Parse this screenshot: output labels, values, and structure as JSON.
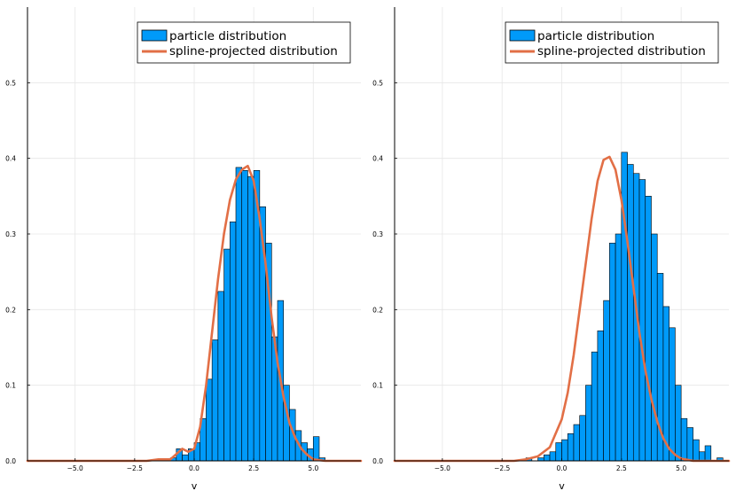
{
  "colors": {
    "histogram": "#009af9",
    "bar_edge": "#000000",
    "spline": "#e26f46",
    "grid": "#e6e6e6",
    "axis": "#000000"
  },
  "chart_data": [
    {
      "type": "bar",
      "subtype": "histogram-with-line",
      "xlabel": "v",
      "ylabel": "",
      "xlim": [
        -7,
        7
      ],
      "ylim": [
        0,
        0.6
      ],
      "xticks": [
        -5.0,
        -2.5,
        0.0,
        2.5,
        5.0
      ],
      "xtick_labels": [
        "−5.0",
        "−2.5",
        "0.0",
        "2.5",
        "5.0"
      ],
      "yticks": [
        0.0,
        0.1,
        0.2,
        0.3,
        0.4,
        0.5
      ],
      "ytick_labels": [
        "0.0",
        "0.1",
        "0.2",
        "0.3",
        "0.4",
        "0.5"
      ],
      "grid": true,
      "legend": {
        "position": "top-right",
        "entries": [
          "particle distribution",
          "spline-projected distribution"
        ]
      },
      "histogram": {
        "name": "particle distribution",
        "bin_width": 0.25,
        "bin_start": -1.0,
        "values": [
          0.004,
          0.016,
          0.008,
          0.016,
          0.024,
          0.056,
          0.108,
          0.16,
          0.224,
          0.28,
          0.316,
          0.388,
          0.384,
          0.376,
          0.384,
          0.336,
          0.288,
          0.164,
          0.212,
          0.1,
          0.068,
          0.04,
          0.024,
          0.016,
          0.032,
          0.004
        ]
      },
      "spline": {
        "name": "spline-projected distribution",
        "x": [
          -7,
          -2.0,
          -1.5,
          -1.0,
          -0.5,
          -0.25,
          0.0,
          0.25,
          0.5,
          0.75,
          1.0,
          1.25,
          1.5,
          1.75,
          2.0,
          2.25,
          2.5,
          2.75,
          3.0,
          3.25,
          3.5,
          3.75,
          4.0,
          4.25,
          4.5,
          4.75,
          5.0,
          5.5,
          7
        ],
        "y": [
          0,
          0.0,
          0.002,
          0.002,
          0.016,
          0.012,
          0.016,
          0.045,
          0.1,
          0.17,
          0.24,
          0.3,
          0.345,
          0.372,
          0.385,
          0.39,
          0.37,
          0.32,
          0.26,
          0.19,
          0.13,
          0.085,
          0.05,
          0.03,
          0.016,
          0.008,
          0.002,
          0.0,
          0
        ]
      }
    },
    {
      "type": "bar",
      "subtype": "histogram-with-line",
      "xlabel": "v",
      "ylabel": "",
      "xlim": [
        -7,
        7
      ],
      "ylim": [
        0,
        0.6
      ],
      "xticks": [
        -5.0,
        -2.5,
        0.0,
        2.5,
        5.0
      ],
      "xtick_labels": [
        "−5.0",
        "−2.5",
        "0.0",
        "2.5",
        "5.0"
      ],
      "yticks": [
        0.0,
        0.1,
        0.2,
        0.3,
        0.4,
        0.5
      ],
      "ytick_labels": [
        "0.0",
        "0.1",
        "0.2",
        "0.3",
        "0.4",
        "0.5"
      ],
      "grid": true,
      "legend": {
        "position": "top-right",
        "entries": [
          "particle distribution",
          "spline-projected distribution"
        ]
      },
      "histogram": {
        "name": "particle distribution",
        "bin_width": 0.25,
        "bin_start": -1.5,
        "values": [
          0.004,
          0.0,
          0.004,
          0.008,
          0.012,
          0.024,
          0.028,
          0.036,
          0.048,
          0.06,
          0.1,
          0.144,
          0.172,
          0.212,
          0.288,
          0.3,
          0.408,
          0.392,
          0.38,
          0.372,
          0.35,
          0.3,
          0.248,
          0.204,
          0.176,
          0.1,
          0.056,
          0.044,
          0.028,
          0.012,
          0.02,
          0.0,
          0.004
        ]
      },
      "spline": {
        "name": "spline-projected distribution",
        "x": [
          -7,
          -2.0,
          -1.5,
          -1.0,
          -0.5,
          0.0,
          0.25,
          0.5,
          0.75,
          1.0,
          1.25,
          1.5,
          1.75,
          2.0,
          2.25,
          2.5,
          2.75,
          3.0,
          3.25,
          3.5,
          3.75,
          4.0,
          4.25,
          4.5,
          4.75,
          5.0,
          5.5,
          7
        ],
        "y": [
          0,
          0.0,
          0.002,
          0.006,
          0.018,
          0.055,
          0.09,
          0.14,
          0.2,
          0.26,
          0.32,
          0.37,
          0.398,
          0.402,
          0.385,
          0.345,
          0.29,
          0.23,
          0.17,
          0.12,
          0.082,
          0.052,
          0.03,
          0.016,
          0.008,
          0.003,
          0.0,
          0
        ]
      }
    }
  ]
}
